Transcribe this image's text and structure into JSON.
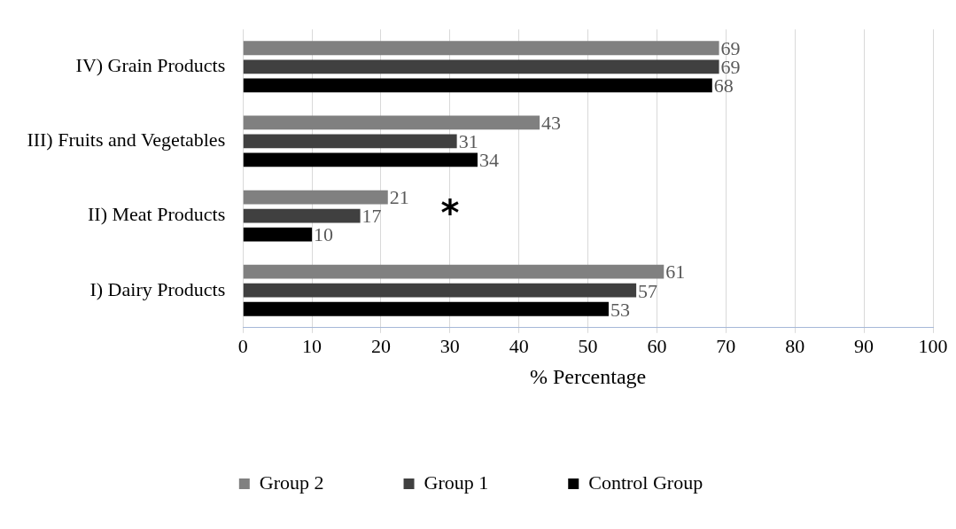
{
  "chart_data": {
    "type": "bar",
    "orientation": "horizontal",
    "xlabel": "% Percentage",
    "categories": [
      "IV) Grain Products",
      "III) Fruits and Vegetables",
      "II) Meat Products",
      "I) Dairy Products"
    ],
    "series": [
      {
        "name": "Group 2",
        "color": "#808080",
        "values": [
          69,
          43,
          21,
          61
        ]
      },
      {
        "name": "Group 1",
        "color": "#404040",
        "values": [
          69,
          31,
          17,
          57
        ]
      },
      {
        "name": "Control Group",
        "color": "#000000",
        "values": [
          68,
          34,
          10,
          53
        ]
      }
    ],
    "xlim": [
      0,
      100
    ],
    "xticks": [
      0,
      10,
      20,
      30,
      40,
      50,
      60,
      70,
      80,
      90,
      100
    ],
    "grid": "x",
    "legend": "bottom",
    "data_labels": true,
    "annotations": [
      "*"
    ]
  }
}
